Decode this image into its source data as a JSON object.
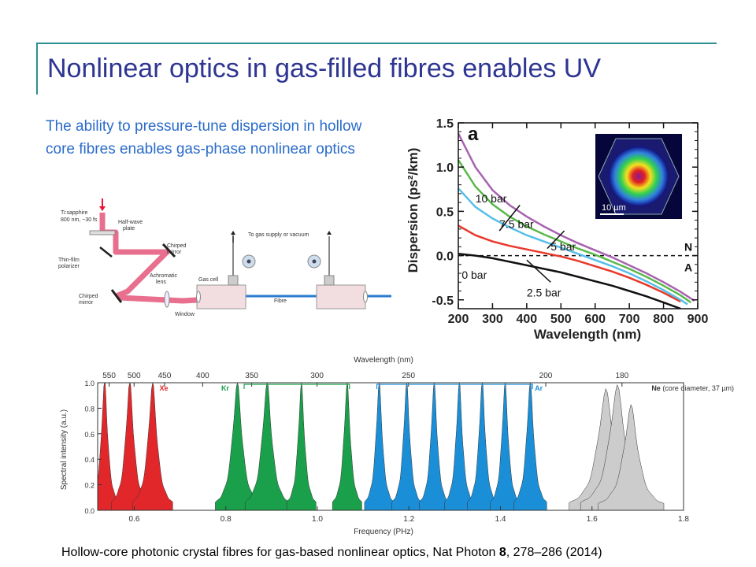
{
  "slide": {
    "title": "Nonlinear optics in gas-filled fibres enables UV",
    "intro": "The ability to pressure-tune dispersion in hollow core fibres enables gas-phase nonlinear optics",
    "citation": {
      "pre": "Hollow-core photonic crystal fibres for gas-based nonlinear optics, Nat Photon ",
      "volume": "8",
      "post": ", 278–286 (2014)"
    },
    "colors": {
      "title": "#2e3592",
      "intro": "#2a6cc9",
      "accent_line": "#2f8f8f"
    }
  },
  "setup": {
    "labels": {
      "laser": [
        "Ti:sapphire",
        "800 nm, ~30 fs"
      ],
      "waveplate": [
        "Half-wave",
        "plate"
      ],
      "polarizer": [
        "Thin-film",
        "polarizer"
      ],
      "chirped_mirror_top": [
        "Chirped",
        "mirror"
      ],
      "chirped_mirror_bottom": [
        "Chirped",
        "mirror"
      ],
      "lens": [
        "Achromatic",
        "lens"
      ],
      "gas_supply": "To gas supply or vacuum",
      "gas_cell": "Gas cell",
      "fibre": "Fibre",
      "window": "Window"
    }
  },
  "chart_data": [
    {
      "type": "line",
      "panel_label": "a",
      "xlabel": "Wavelength (nm)",
      "ylabel": "Dispersion (ps²/km)",
      "xlim": [
        200,
        900
      ],
      "ylim": [
        -0.6,
        1.5
      ],
      "xticks": [
        "200",
        "300",
        "400",
        "500",
        "600",
        "700",
        "800",
        "900"
      ],
      "yticks": [
        "1.5",
        "1.0",
        "0.5",
        "0.0",
        "-0.5"
      ],
      "zero_line": {
        "style": "dashed",
        "label_above": "N",
        "label_below": "A"
      },
      "inset_scale": "10 µm",
      "series": [
        {
          "name": "0 bar",
          "color": "#111111",
          "x": [
            200,
            250,
            300,
            350,
            400,
            450,
            500,
            550,
            600,
            650,
            700,
            750,
            800,
            850
          ],
          "y": [
            0.02,
            0.0,
            -0.03,
            -0.07,
            -0.11,
            -0.15,
            -0.19,
            -0.24,
            -0.29,
            -0.34,
            -0.4,
            -0.46,
            -0.53,
            -0.6
          ]
        },
        {
          "name": "2.5 bar",
          "color": "#e8392b",
          "x": [
            200,
            250,
            300,
            350,
            400,
            450,
            500,
            550,
            600,
            650,
            700,
            750,
            800,
            850
          ],
          "y": [
            0.34,
            0.23,
            0.16,
            0.11,
            0.07,
            0.03,
            -0.01,
            -0.06,
            -0.12,
            -0.18,
            -0.25,
            -0.33,
            -0.42,
            -0.52
          ]
        },
        {
          "name": "5 bar",
          "color": "#57bfe8",
          "x": [
            200,
            250,
            300,
            350,
            400,
            450,
            500,
            550,
            600,
            650,
            700,
            750,
            800,
            850,
            870
          ],
          "y": [
            0.76,
            0.55,
            0.42,
            0.32,
            0.23,
            0.16,
            0.09,
            0.02,
            -0.05,
            -0.12,
            -0.2,
            -0.29,
            -0.39,
            -0.5,
            -0.55
          ]
        },
        {
          "name": "7.5 bar",
          "color": "#5bb84a",
          "x": [
            200,
            250,
            300,
            350,
            400,
            450,
            500,
            550,
            600,
            650,
            700,
            750,
            800,
            850,
            880
          ],
          "y": [
            1.08,
            0.78,
            0.58,
            0.44,
            0.33,
            0.24,
            0.16,
            0.08,
            0.01,
            -0.07,
            -0.15,
            -0.24,
            -0.34,
            -0.45,
            -0.53
          ]
        },
        {
          "name": "10 bar",
          "color": "#a763b0",
          "x": [
            200,
            250,
            300,
            350,
            400,
            450,
            500,
            550,
            600,
            650,
            700,
            750,
            800,
            850,
            890
          ],
          "y": [
            1.38,
            1.0,
            0.74,
            0.57,
            0.44,
            0.33,
            0.23,
            0.14,
            0.06,
            -0.02,
            -0.11,
            -0.2,
            -0.3,
            -0.41,
            -0.51
          ]
        }
      ]
    },
    {
      "type": "area",
      "xlabel": "Frequency (PHz)",
      "ylabel": "Spectral intensity (a.u.)",
      "top_axis_label": "Wavelength (nm)",
      "xlim": [
        0.52,
        1.8
      ],
      "ylim": [
        0,
        1.0
      ],
      "xticks": [
        "0.6",
        "0.8",
        "1.0",
        "1.2",
        "1.4",
        "1.6",
        "1.8"
      ],
      "yticks": [
        "1.0",
        "0.8",
        "0.6",
        "0.4",
        "0.2",
        "0.0"
      ],
      "top_ticks": [
        {
          "label": "550",
          "nm": 550
        },
        {
          "label": "500",
          "nm": 500
        },
        {
          "label": "450",
          "nm": 450
        },
        {
          "label": "400",
          "nm": 400
        },
        {
          "label": "350",
          "nm": 350
        },
        {
          "label": "300",
          "nm": 300
        },
        {
          "label": "250",
          "nm": 250
        },
        {
          "label": "200",
          "nm": 200
        },
        {
          "label": "180",
          "nm": 180
        }
      ],
      "gases": [
        {
          "name": "Xe",
          "color": "#e2272b",
          "label_color": "#e2272b",
          "bracket": null,
          "peaks": [
            {
              "f": 0.535,
              "h": 1.0,
              "w": 0.008
            },
            {
              "f": 0.59,
              "h": 0.99,
              "w": 0.01
            },
            {
              "f": 0.64,
              "h": 0.98,
              "w": 0.011
            }
          ]
        },
        {
          "name": "Kr",
          "color": "#1aa04a",
          "label_color": "#1aa04a",
          "bracket": [
            0.84,
            1.07
          ],
          "peaks": [
            {
              "f": 0.825,
              "h": 0.98,
              "w": 0.012
            },
            {
              "f": 0.89,
              "h": 0.98,
              "w": 0.012
            },
            {
              "f": 0.965,
              "h": 0.97,
              "w": 0.008
            },
            {
              "f": 1.065,
              "h": 0.98,
              "w": 0.008
            }
          ]
        },
        {
          "name": "Ar",
          "color": "#1a8fd8",
          "label_color": "#1a8fd8",
          "bracket": [
            1.13,
            1.47
          ],
          "peaks": [
            {
              "f": 1.135,
              "h": 0.98,
              "w": 0.008
            },
            {
              "f": 1.195,
              "h": 0.98,
              "w": 0.008
            },
            {
              "f": 1.255,
              "h": 0.98,
              "w": 0.008
            },
            {
              "f": 1.31,
              "h": 0.98,
              "w": 0.008
            },
            {
              "f": 1.36,
              "h": 0.99,
              "w": 0.008
            },
            {
              "f": 1.41,
              "h": 0.98,
              "w": 0.008
            },
            {
              "f": 1.465,
              "h": 0.98,
              "w": 0.009
            }
          ]
        },
        {
          "name": "Ne",
          "color": "#cccccc",
          "label_color": "#333333",
          "bracket": null,
          "note": "(core diameter, 37 µm)",
          "peaks": [
            {
              "f": 1.63,
              "h": 0.92,
              "w": 0.02
            },
            {
              "f": 1.655,
              "h": 0.95,
              "w": 0.02
            },
            {
              "f": 1.685,
              "h": 0.8,
              "w": 0.018
            }
          ]
        }
      ]
    }
  ]
}
